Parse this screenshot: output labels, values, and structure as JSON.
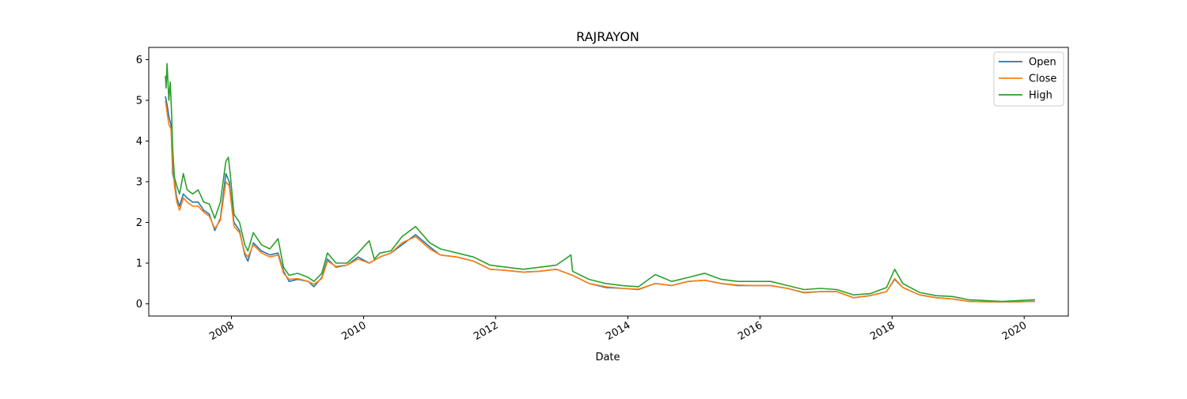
{
  "chart_data": {
    "type": "line",
    "title": "RAJRAYON",
    "xlabel": "Date",
    "ylabel": "",
    "xlim": [
      "2006-10-01",
      "2020-09-01"
    ],
    "ylim": [
      -0.3,
      6.3
    ],
    "x_ticks": [
      "2008",
      "2010",
      "2012",
      "2014",
      "2016",
      "2018",
      "2020"
    ],
    "y_ticks": [
      "0",
      "1",
      "2",
      "3",
      "4",
      "5",
      "6"
    ],
    "grid": false,
    "legend_position": "top-right",
    "series": [
      {
        "name": "Open",
        "color": "#1f77b4",
        "points": [
          [
            "2007-01-01",
            5.1
          ],
          [
            "2007-01-10",
            4.9
          ],
          [
            "2007-01-20",
            4.6
          ],
          [
            "2007-02-01",
            4.4
          ],
          [
            "2007-02-10",
            3.2
          ],
          [
            "2007-02-20",
            3.0
          ],
          [
            "2007-03-05",
            2.6
          ],
          [
            "2007-03-20",
            2.4
          ],
          [
            "2007-04-10",
            2.7
          ],
          [
            "2007-05-01",
            2.6
          ],
          [
            "2007-06-01",
            2.5
          ],
          [
            "2007-07-01",
            2.5
          ],
          [
            "2007-08-01",
            2.3
          ],
          [
            "2007-09-01",
            2.2
          ],
          [
            "2007-10-01",
            1.8
          ],
          [
            "2007-11-01",
            2.1
          ],
          [
            "2007-12-01",
            3.2
          ],
          [
            "2007-12-20",
            3.0
          ],
          [
            "2008-01-15",
            2.0
          ],
          [
            "2008-02-15",
            1.8
          ],
          [
            "2008-03-15",
            1.2
          ],
          [
            "2008-04-01",
            1.05
          ],
          [
            "2008-05-01",
            1.5
          ],
          [
            "2008-06-15",
            1.3
          ],
          [
            "2008-08-01",
            1.2
          ],
          [
            "2008-09-15",
            1.25
          ],
          [
            "2008-10-15",
            0.8
          ],
          [
            "2008-11-15",
            0.55
          ],
          [
            "2009-01-01",
            0.6
          ],
          [
            "2009-03-01",
            0.55
          ],
          [
            "2009-04-01",
            0.42
          ],
          [
            "2009-05-15",
            0.65
          ],
          [
            "2009-06-15",
            1.1
          ],
          [
            "2009-08-01",
            0.9
          ],
          [
            "2009-10-01",
            0.95
          ],
          [
            "2009-12-01",
            1.15
          ],
          [
            "2010-02-01",
            1.0
          ],
          [
            "2010-04-01",
            1.15
          ],
          [
            "2010-06-01",
            1.25
          ],
          [
            "2010-08-01",
            1.45
          ],
          [
            "2010-10-15",
            1.7
          ],
          [
            "2011-01-01",
            1.4
          ],
          [
            "2011-03-01",
            1.2
          ],
          [
            "2011-06-01",
            1.15
          ],
          [
            "2011-09-01",
            1.05
          ],
          [
            "2011-12-01",
            0.85
          ],
          [
            "2012-03-01",
            0.82
          ],
          [
            "2012-06-01",
            0.78
          ],
          [
            "2012-09-01",
            0.8
          ],
          [
            "2012-12-01",
            0.85
          ],
          [
            "2013-03-01",
            0.7
          ],
          [
            "2013-06-01",
            0.5
          ],
          [
            "2013-09-01",
            0.4
          ],
          [
            "2013-12-01",
            0.38
          ],
          [
            "2014-03-01",
            0.35
          ],
          [
            "2014-06-01",
            0.5
          ],
          [
            "2014-09-01",
            0.45
          ],
          [
            "2014-12-01",
            0.55
          ],
          [
            "2015-03-01",
            0.58
          ],
          [
            "2015-06-01",
            0.5
          ],
          [
            "2015-09-01",
            0.45
          ],
          [
            "2015-12-01",
            0.45
          ],
          [
            "2016-03-01",
            0.45
          ],
          [
            "2016-06-01",
            0.38
          ],
          [
            "2016-09-01",
            0.27
          ],
          [
            "2016-12-01",
            0.3
          ],
          [
            "2017-03-01",
            0.3
          ],
          [
            "2017-06-01",
            0.15
          ],
          [
            "2017-09-01",
            0.2
          ],
          [
            "2017-12-01",
            0.3
          ],
          [
            "2018-01-15",
            0.6
          ],
          [
            "2018-03-01",
            0.4
          ],
          [
            "2018-06-01",
            0.22
          ],
          [
            "2018-09-01",
            0.15
          ],
          [
            "2018-12-01",
            0.12
          ],
          [
            "2019-03-01",
            0.06
          ],
          [
            "2019-06-01",
            0.05
          ],
          [
            "2019-09-01",
            0.05
          ],
          [
            "2019-12-01",
            0.05
          ],
          [
            "2020-03-01",
            0.06
          ]
        ]
      },
      {
        "name": "Close",
        "color": "#ff7f0e",
        "points": [
          [
            "2007-01-01",
            5.0
          ],
          [
            "2007-01-10",
            4.7
          ],
          [
            "2007-01-20",
            4.4
          ],
          [
            "2007-02-01",
            4.3
          ],
          [
            "2007-02-10",
            3.4
          ],
          [
            "2007-02-20",
            2.9
          ],
          [
            "2007-03-05",
            2.5
          ],
          [
            "2007-03-20",
            2.3
          ],
          [
            "2007-04-10",
            2.6
          ],
          [
            "2007-05-01",
            2.5
          ],
          [
            "2007-06-01",
            2.4
          ],
          [
            "2007-07-01",
            2.4
          ],
          [
            "2007-08-01",
            2.25
          ],
          [
            "2007-09-01",
            2.15
          ],
          [
            "2007-10-01",
            1.85
          ],
          [
            "2007-11-01",
            2.05
          ],
          [
            "2007-12-01",
            3.0
          ],
          [
            "2007-12-20",
            2.9
          ],
          [
            "2008-01-15",
            1.9
          ],
          [
            "2008-02-15",
            1.75
          ],
          [
            "2008-03-15",
            1.25
          ],
          [
            "2008-04-01",
            1.15
          ],
          [
            "2008-05-01",
            1.45
          ],
          [
            "2008-06-15",
            1.25
          ],
          [
            "2008-08-01",
            1.15
          ],
          [
            "2008-09-15",
            1.2
          ],
          [
            "2008-10-15",
            0.75
          ],
          [
            "2008-11-15",
            0.6
          ],
          [
            "2009-01-01",
            0.62
          ],
          [
            "2009-03-01",
            0.55
          ],
          [
            "2009-04-01",
            0.48
          ],
          [
            "2009-05-15",
            0.62
          ],
          [
            "2009-06-15",
            1.05
          ],
          [
            "2009-08-01",
            0.92
          ],
          [
            "2009-10-01",
            0.95
          ],
          [
            "2009-12-01",
            1.1
          ],
          [
            "2010-02-01",
            1.0
          ],
          [
            "2010-04-01",
            1.15
          ],
          [
            "2010-06-01",
            1.25
          ],
          [
            "2010-08-01",
            1.5
          ],
          [
            "2010-10-15",
            1.65
          ],
          [
            "2011-01-01",
            1.35
          ],
          [
            "2011-03-01",
            1.2
          ],
          [
            "2011-06-01",
            1.15
          ],
          [
            "2011-09-01",
            1.05
          ],
          [
            "2011-12-01",
            0.85
          ],
          [
            "2012-03-01",
            0.82
          ],
          [
            "2012-06-01",
            0.78
          ],
          [
            "2012-09-01",
            0.8
          ],
          [
            "2012-12-01",
            0.85
          ],
          [
            "2013-03-01",
            0.7
          ],
          [
            "2013-06-01",
            0.5
          ],
          [
            "2013-09-01",
            0.42
          ],
          [
            "2013-12-01",
            0.38
          ],
          [
            "2014-03-01",
            0.36
          ],
          [
            "2014-06-01",
            0.5
          ],
          [
            "2014-09-01",
            0.45
          ],
          [
            "2014-12-01",
            0.55
          ],
          [
            "2015-03-01",
            0.58
          ],
          [
            "2015-06-01",
            0.5
          ],
          [
            "2015-09-01",
            0.46
          ],
          [
            "2015-12-01",
            0.45
          ],
          [
            "2016-03-01",
            0.45
          ],
          [
            "2016-06-01",
            0.38
          ],
          [
            "2016-09-01",
            0.28
          ],
          [
            "2016-12-01",
            0.3
          ],
          [
            "2017-03-01",
            0.3
          ],
          [
            "2017-06-01",
            0.15
          ],
          [
            "2017-09-01",
            0.2
          ],
          [
            "2017-12-01",
            0.3
          ],
          [
            "2018-01-15",
            0.62
          ],
          [
            "2018-03-01",
            0.4
          ],
          [
            "2018-06-01",
            0.22
          ],
          [
            "2018-09-01",
            0.15
          ],
          [
            "2018-12-01",
            0.12
          ],
          [
            "2019-03-01",
            0.06
          ],
          [
            "2019-06-01",
            0.05
          ],
          [
            "2019-09-01",
            0.05
          ],
          [
            "2019-12-01",
            0.05
          ],
          [
            "2020-03-01",
            0.06
          ]
        ]
      },
      {
        "name": "High",
        "color": "#2ca02c",
        "points": [
          [
            "2007-01-01",
            5.6
          ],
          [
            "2007-01-05",
            5.3
          ],
          [
            "2007-01-10",
            5.9
          ],
          [
            "2007-01-20",
            5.0
          ],
          [
            "2007-01-28",
            5.45
          ],
          [
            "2007-02-05",
            4.6
          ],
          [
            "2007-02-10",
            3.8
          ],
          [
            "2007-02-20",
            3.1
          ],
          [
            "2007-03-05",
            2.9
          ],
          [
            "2007-03-20",
            2.7
          ],
          [
            "2007-04-10",
            3.2
          ],
          [
            "2007-05-01",
            2.8
          ],
          [
            "2007-06-01",
            2.7
          ],
          [
            "2007-07-01",
            2.8
          ],
          [
            "2007-08-01",
            2.5
          ],
          [
            "2007-09-01",
            2.45
          ],
          [
            "2007-10-01",
            2.1
          ],
          [
            "2007-11-01",
            2.5
          ],
          [
            "2007-12-01",
            3.5
          ],
          [
            "2007-12-15",
            3.6
          ],
          [
            "2007-12-25",
            3.2
          ],
          [
            "2008-01-15",
            2.2
          ],
          [
            "2008-02-15",
            2.0
          ],
          [
            "2008-03-15",
            1.45
          ],
          [
            "2008-04-01",
            1.3
          ],
          [
            "2008-05-01",
            1.75
          ],
          [
            "2008-06-15",
            1.45
          ],
          [
            "2008-08-01",
            1.35
          ],
          [
            "2008-09-15",
            1.6
          ],
          [
            "2008-10-15",
            0.9
          ],
          [
            "2008-11-15",
            0.7
          ],
          [
            "2009-01-01",
            0.75
          ],
          [
            "2009-03-01",
            0.65
          ],
          [
            "2009-04-01",
            0.55
          ],
          [
            "2009-05-15",
            0.75
          ],
          [
            "2009-06-15",
            1.25
          ],
          [
            "2009-08-01",
            1.0
          ],
          [
            "2009-10-01",
            1.0
          ],
          [
            "2009-12-01",
            1.25
          ],
          [
            "2010-02-01",
            1.55
          ],
          [
            "2010-03-01",
            1.1
          ],
          [
            "2010-04-01",
            1.25
          ],
          [
            "2010-06-01",
            1.3
          ],
          [
            "2010-08-01",
            1.65
          ],
          [
            "2010-10-15",
            1.9
          ],
          [
            "2011-01-01",
            1.5
          ],
          [
            "2011-03-01",
            1.35
          ],
          [
            "2011-06-01",
            1.25
          ],
          [
            "2011-09-01",
            1.15
          ],
          [
            "2011-12-01",
            0.95
          ],
          [
            "2012-03-01",
            0.9
          ],
          [
            "2012-06-01",
            0.85
          ],
          [
            "2012-09-01",
            0.9
          ],
          [
            "2012-12-01",
            0.95
          ],
          [
            "2013-02-20",
            1.2
          ],
          [
            "2013-03-01",
            0.8
          ],
          [
            "2013-06-01",
            0.6
          ],
          [
            "2013-09-01",
            0.5
          ],
          [
            "2013-12-01",
            0.45
          ],
          [
            "2014-03-01",
            0.42
          ],
          [
            "2014-06-01",
            0.72
          ],
          [
            "2014-09-01",
            0.55
          ],
          [
            "2014-12-01",
            0.65
          ],
          [
            "2015-03-01",
            0.75
          ],
          [
            "2015-06-01",
            0.6
          ],
          [
            "2015-09-01",
            0.55
          ],
          [
            "2015-12-01",
            0.55
          ],
          [
            "2016-03-01",
            0.55
          ],
          [
            "2016-06-01",
            0.45
          ],
          [
            "2016-09-01",
            0.35
          ],
          [
            "2016-12-01",
            0.38
          ],
          [
            "2017-03-01",
            0.35
          ],
          [
            "2017-06-01",
            0.22
          ],
          [
            "2017-09-01",
            0.25
          ],
          [
            "2017-12-01",
            0.4
          ],
          [
            "2018-01-15",
            0.85
          ],
          [
            "2018-03-01",
            0.5
          ],
          [
            "2018-06-01",
            0.28
          ],
          [
            "2018-09-01",
            0.2
          ],
          [
            "2018-12-01",
            0.18
          ],
          [
            "2019-03-01",
            0.1
          ],
          [
            "2019-06-01",
            0.08
          ],
          [
            "2019-09-01",
            0.06
          ],
          [
            "2019-12-01",
            0.08
          ],
          [
            "2020-03-01",
            0.1
          ]
        ]
      }
    ]
  }
}
